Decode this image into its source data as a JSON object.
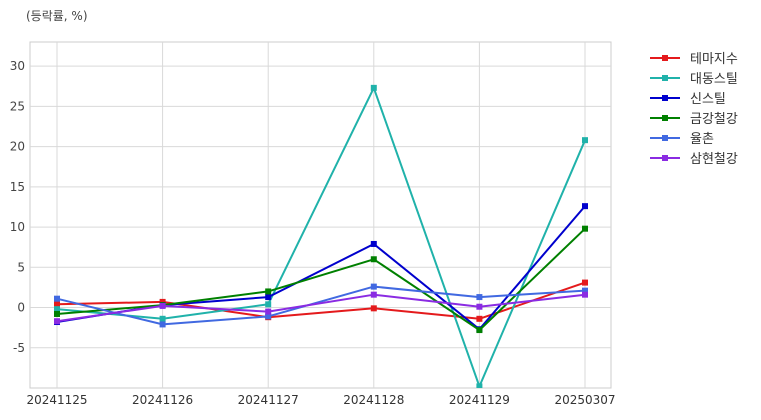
{
  "chart_data": {
    "type": "line",
    "ylabel": "(등락률, %)",
    "xlabel": "",
    "categories": [
      "20241125",
      "20241126",
      "20241127",
      "20241128",
      "20241129",
      "20250307"
    ],
    "y_ticks": [
      -5,
      0,
      5,
      10,
      15,
      20,
      25,
      30
    ],
    "ylim": [
      -10,
      33
    ],
    "grid": true,
    "legend_position": "outside-top-right",
    "series": [
      {
        "name": "테마지수",
        "color": "#e41a1c",
        "values": [
          0.4,
          0.7,
          -1.2,
          -0.1,
          -1.4,
          3.1
        ]
      },
      {
        "name": "대동스틸",
        "color": "#20b2aa",
        "values": [
          -0.2,
          -1.4,
          0.4,
          27.3,
          -9.8,
          20.8
        ]
      },
      {
        "name": "신스틸",
        "color": "#0000cd",
        "values": [
          -1.8,
          0.3,
          1.3,
          7.9,
          -2.7,
          12.6
        ]
      },
      {
        "name": "금강철강",
        "color": "#008000",
        "values": [
          -0.8,
          0.3,
          2.0,
          6.0,
          -2.8,
          9.8
        ]
      },
      {
        "name": "율촌",
        "color": "#4169e1",
        "values": [
          1.1,
          -2.1,
          -1.1,
          2.6,
          1.3,
          2.1
        ]
      },
      {
        "name": "삼현철강",
        "color": "#8a2be2",
        "values": [
          -1.7,
          0.2,
          -0.5,
          1.6,
          0.1,
          1.6
        ]
      }
    ]
  }
}
